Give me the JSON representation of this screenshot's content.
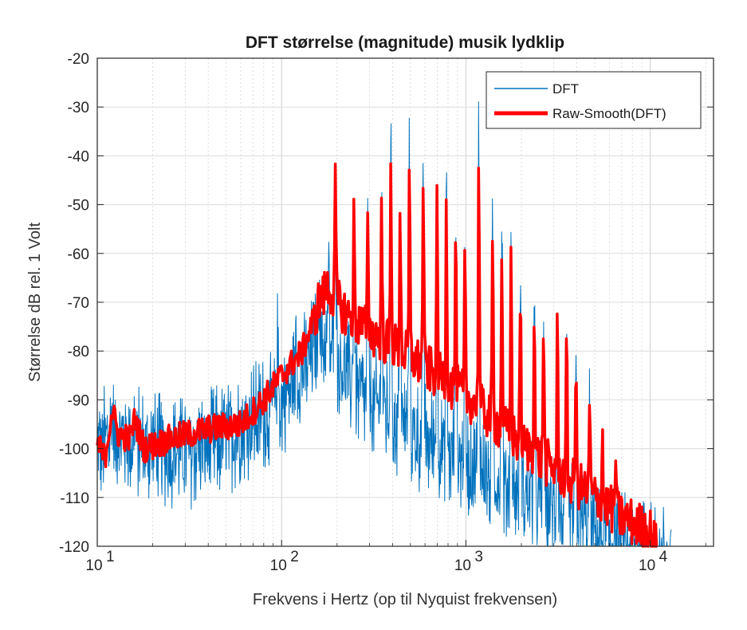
{
  "chart_data": {
    "type": "line",
    "title": "DFT størrelse (magnitude) musik lydklip",
    "xlabel": "Frekvens i Hertz (op til Nyquist frekvensen)",
    "ylabel": "Størrelse dB rel. 1 Volt",
    "xscale": "log",
    "xlim": [
      10,
      22050
    ],
    "ylim": [
      -120,
      -20
    ],
    "grid": true,
    "minor_grid": true,
    "legend_position": "top-right",
    "x_ticks": [
      {
        "value": 10,
        "base": "10",
        "exp": "1"
      },
      {
        "value": 100,
        "base": "10",
        "exp": "2"
      },
      {
        "value": 1000,
        "base": "10",
        "exp": "3"
      },
      {
        "value": 10000,
        "base": "10",
        "exp": "4"
      }
    ],
    "y_ticks": [
      {
        "value": -20,
        "label": "-20"
      },
      {
        "value": -30,
        "label": "-30"
      },
      {
        "value": -40,
        "label": "-40"
      },
      {
        "value": -50,
        "label": "-50"
      },
      {
        "value": -60,
        "label": "-60"
      },
      {
        "value": -70,
        "label": "-70"
      },
      {
        "value": -80,
        "label": "-80"
      },
      {
        "value": -90,
        "label": "-90"
      },
      {
        "value": -100,
        "label": "-100"
      },
      {
        "value": -110,
        "label": "-110"
      },
      {
        "value": -120,
        "label": "-120"
      }
    ],
    "harmonic_peaks_hz": [
      196,
      247,
      294,
      349,
      392,
      440,
      494,
      587,
      698,
      784,
      880,
      988,
      1175,
      1397,
      1568,
      1760,
      1976,
      2349,
      2637,
      3136,
      3520,
      3951,
      4699
    ],
    "series": [
      {
        "name": "DFT",
        "color": "#0072BD",
        "noise_amplitude_db": 12,
        "envelope": [
          {
            "x": 10,
            "y": -100
          },
          {
            "x": 12,
            "y": -97
          },
          {
            "x": 15,
            "y": -98
          },
          {
            "x": 20,
            "y": -100
          },
          {
            "x": 30,
            "y": -101
          },
          {
            "x": 50,
            "y": -98
          },
          {
            "x": 70,
            "y": -94
          },
          {
            "x": 100,
            "y": -90
          },
          {
            "x": 130,
            "y": -84
          },
          {
            "x": 160,
            "y": -78
          },
          {
            "x": 190,
            "y": -80
          },
          {
            "x": 250,
            "y": -88
          },
          {
            "x": 400,
            "y": -94
          },
          {
            "x": 700,
            "y": -100
          },
          {
            "x": 1000,
            "y": -103
          },
          {
            "x": 2000,
            "y": -109
          },
          {
            "x": 4000,
            "y": -115
          },
          {
            "x": 7000,
            "y": -120
          },
          {
            "x": 13000,
            "y": -124
          }
        ],
        "peaks": [
          {
            "x": 12,
            "y": -91
          },
          {
            "x": 16,
            "y": -93
          },
          {
            "x": 95,
            "y": -78
          },
          {
            "x": 120,
            "y": -76
          },
          {
            "x": 160,
            "y": -62
          },
          {
            "x": 180,
            "y": -60
          },
          {
            "x": 196,
            "y": -42
          },
          {
            "x": 247,
            "y": -45
          },
          {
            "x": 294,
            "y": -48
          },
          {
            "x": 349,
            "y": -43
          },
          {
            "x": 392,
            "y": -36
          },
          {
            "x": 440,
            "y": -44
          },
          {
            "x": 494,
            "y": -37
          },
          {
            "x": 587,
            "y": -38
          },
          {
            "x": 698,
            "y": -44
          },
          {
            "x": 784,
            "y": -45
          },
          {
            "x": 880,
            "y": -51
          },
          {
            "x": 988,
            "y": -60
          },
          {
            "x": 1175,
            "y": -30
          },
          {
            "x": 1397,
            "y": -50
          },
          {
            "x": 1568,
            "y": -48
          },
          {
            "x": 1760,
            "y": -54
          },
          {
            "x": 1976,
            "y": -62
          },
          {
            "x": 2349,
            "y": -65
          },
          {
            "x": 2637,
            "y": -70
          },
          {
            "x": 3136,
            "y": -72
          },
          {
            "x": 3520,
            "y": -77
          },
          {
            "x": 3951,
            "y": -81
          },
          {
            "x": 4699,
            "y": -90
          }
        ]
      },
      {
        "name": "Raw-Smooth(DFT)",
        "color": "#FF0000",
        "envelope": [
          {
            "x": 10,
            "y": -99
          },
          {
            "x": 11,
            "y": -102
          },
          {
            "x": 12,
            "y": -92
          },
          {
            "x": 13,
            "y": -97
          },
          {
            "x": 15,
            "y": -98
          },
          {
            "x": 16,
            "y": -94
          },
          {
            "x": 18,
            "y": -100
          },
          {
            "x": 25,
            "y": -98
          },
          {
            "x": 40,
            "y": -96
          },
          {
            "x": 60,
            "y": -95
          },
          {
            "x": 80,
            "y": -90
          },
          {
            "x": 100,
            "y": -85
          },
          {
            "x": 130,
            "y": -80
          },
          {
            "x": 160,
            "y": -70
          },
          {
            "x": 180,
            "y": -67
          },
          {
            "x": 220,
            "y": -72
          },
          {
            "x": 300,
            "y": -76
          },
          {
            "x": 450,
            "y": -80
          },
          {
            "x": 700,
            "y": -85
          },
          {
            "x": 1000,
            "y": -89
          },
          {
            "x": 1500,
            "y": -95
          },
          {
            "x": 2000,
            "y": -99
          },
          {
            "x": 3000,
            "y": -104
          },
          {
            "x": 5000,
            "y": -110
          },
          {
            "x": 7000,
            "y": -114
          },
          {
            "x": 10000,
            "y": -117
          },
          {
            "x": 11000,
            "y": -121
          }
        ],
        "peaks": [
          {
            "x": 196,
            "y": -45
          },
          {
            "x": 247,
            "y": -52
          },
          {
            "x": 294,
            "y": -53
          },
          {
            "x": 349,
            "y": -50
          },
          {
            "x": 392,
            "y": -42
          },
          {
            "x": 440,
            "y": -48
          },
          {
            "x": 494,
            "y": -42
          },
          {
            "x": 587,
            "y": -42
          },
          {
            "x": 698,
            "y": -48
          },
          {
            "x": 784,
            "y": -49
          },
          {
            "x": 880,
            "y": -55
          },
          {
            "x": 988,
            "y": -62
          },
          {
            "x": 1175,
            "y": -38
          },
          {
            "x": 1397,
            "y": -57
          },
          {
            "x": 1568,
            "y": -57
          },
          {
            "x": 1760,
            "y": -58
          },
          {
            "x": 1976,
            "y": -66
          },
          {
            "x": 2349,
            "y": -68
          },
          {
            "x": 2637,
            "y": -72
          },
          {
            "x": 3136,
            "y": -74
          },
          {
            "x": 3520,
            "y": -78
          },
          {
            "x": 3951,
            "y": -82
          },
          {
            "x": 4699,
            "y": -90
          },
          {
            "x": 5500,
            "y": -96
          },
          {
            "x": 6500,
            "y": -100
          }
        ]
      }
    ]
  }
}
